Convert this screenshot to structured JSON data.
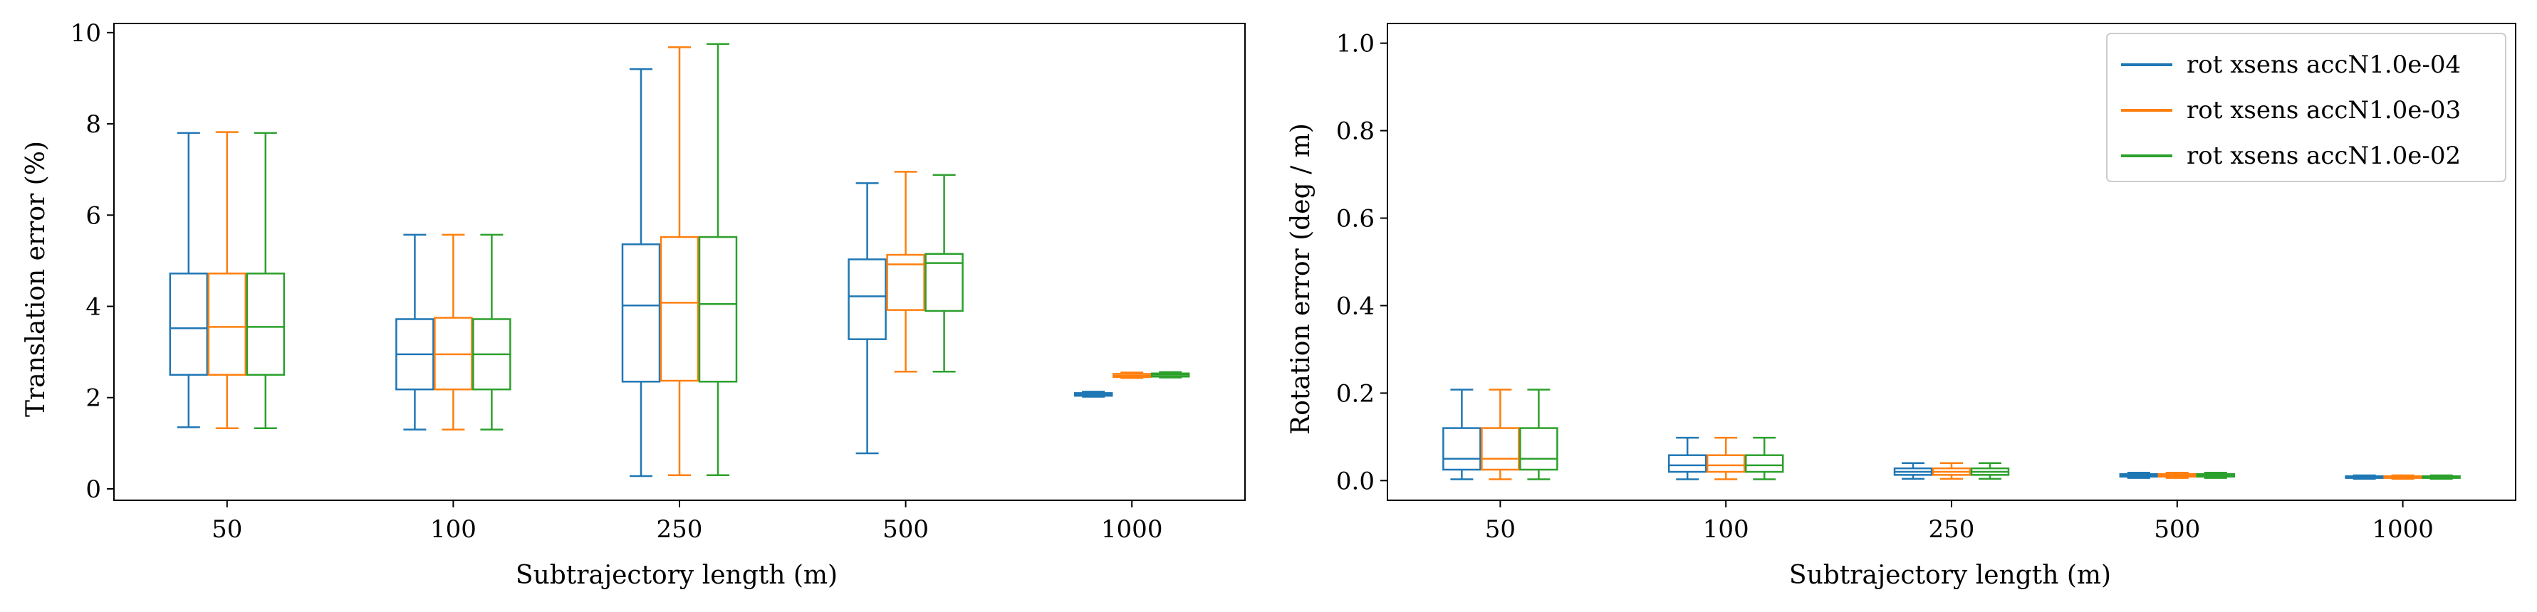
{
  "colors": {
    "series_a": "#1f77b4",
    "series_b": "#ff7f0e",
    "series_c": "#2ca02c",
    "axis": "#000000"
  },
  "chart_data": [
    {
      "type": "box",
      "title": "",
      "xlabel": "Subtrajectory length (m)",
      "ylabel": "Translation error (%)",
      "ylim": [
        -0.25,
        10.2
      ],
      "yticks": [
        0,
        2,
        4,
        6,
        8,
        10
      ],
      "categories": [
        "50",
        "100",
        "250",
        "500",
        "1000"
      ],
      "grid": false,
      "series": [
        {
          "name": "rot xsens accN1.0e-04",
          "color": "#1f77b4",
          "boxes": [
            {
              "whislo": 1.35,
              "q1": 2.5,
              "med": 3.52,
              "q3": 4.72,
              "whishi": 7.8
            },
            {
              "whislo": 1.3,
              "q1": 2.18,
              "med": 2.95,
              "q3": 3.72,
              "whishi": 5.57
            },
            {
              "whislo": 0.28,
              "q1": 2.35,
              "med": 4.02,
              "q3": 5.36,
              "whishi": 9.2
            },
            {
              "whislo": 0.78,
              "q1": 3.28,
              "med": 4.22,
              "q3": 5.03,
              "whishi": 6.7
            },
            {
              "whislo": 2.02,
              "q1": 2.04,
              "med": 2.07,
              "q3": 2.1,
              "whishi": 2.13
            }
          ]
        },
        {
          "name": "rot xsens accN1.0e-03",
          "color": "#ff7f0e",
          "boxes": [
            {
              "whislo": 1.33,
              "q1": 2.5,
              "med": 3.55,
              "q3": 4.72,
              "whishi": 7.82
            },
            {
              "whislo": 1.3,
              "q1": 2.18,
              "med": 2.95,
              "q3": 3.75,
              "whishi": 5.57
            },
            {
              "whislo": 0.3,
              "q1": 2.37,
              "med": 4.08,
              "q3": 5.52,
              "whishi": 9.68
            },
            {
              "whislo": 2.57,
              "q1": 3.92,
              "med": 4.92,
              "q3": 5.13,
              "whishi": 6.95
            },
            {
              "whislo": 2.43,
              "q1": 2.45,
              "med": 2.48,
              "q3": 2.52,
              "whishi": 2.55
            }
          ]
        },
        {
          "name": "rot xsens accN1.0e-02",
          "color": "#2ca02c",
          "boxes": [
            {
              "whislo": 1.33,
              "q1": 2.5,
              "med": 3.55,
              "q3": 4.72,
              "whishi": 7.8
            },
            {
              "whislo": 1.3,
              "q1": 2.18,
              "med": 2.95,
              "q3": 3.72,
              "whishi": 5.57
            },
            {
              "whislo": 0.3,
              "q1": 2.35,
              "med": 4.05,
              "q3": 5.52,
              "whishi": 9.75
            },
            {
              "whislo": 2.57,
              "q1": 3.9,
              "med": 4.95,
              "q3": 5.15,
              "whishi": 6.88
            },
            {
              "whislo": 2.44,
              "q1": 2.46,
              "med": 2.5,
              "q3": 2.53,
              "whishi": 2.56
            }
          ]
        }
      ]
    },
    {
      "type": "box",
      "title": "",
      "xlabel": "Subtrajectory length (m)",
      "ylabel": "Rotation error (deg / m)",
      "ylim": [
        -0.045,
        1.045
      ],
      "yticks": [
        0.0,
        0.2,
        0.4,
        0.6,
        0.8,
        1.0
      ],
      "ytick_labels": [
        "0.0",
        "0.2",
        "0.4",
        "0.6",
        "0.8",
        "1.0"
      ],
      "categories": [
        "50",
        "100",
        "250",
        "500",
        "1000"
      ],
      "grid": false,
      "legend_position": "top-right",
      "series": [
        {
          "name": "rot xsens accN1.0e-04",
          "color": "#1f77b4",
          "boxes": [
            {
              "whislo": 0.003,
              "q1": 0.025,
              "med": 0.05,
              "q3": 0.12,
              "whishi": 0.208
            },
            {
              "whislo": 0.003,
              "q1": 0.02,
              "med": 0.035,
              "q3": 0.058,
              "whishi": 0.098
            },
            {
              "whislo": 0.004,
              "q1": 0.013,
              "med": 0.02,
              "q3": 0.028,
              "whishi": 0.04
            },
            {
              "whislo": 0.006,
              "q1": 0.009,
              "med": 0.012,
              "q3": 0.015,
              "whishi": 0.018
            },
            {
              "whislo": 0.004,
              "q1": 0.006,
              "med": 0.008,
              "q3": 0.01,
              "whishi": 0.012
            }
          ]
        },
        {
          "name": "rot xsens accN1.0e-03",
          "color": "#ff7f0e",
          "boxes": [
            {
              "whislo": 0.003,
              "q1": 0.025,
              "med": 0.05,
              "q3": 0.12,
              "whishi": 0.208
            },
            {
              "whislo": 0.003,
              "q1": 0.02,
              "med": 0.035,
              "q3": 0.058,
              "whishi": 0.098
            },
            {
              "whislo": 0.004,
              "q1": 0.013,
              "med": 0.02,
              "q3": 0.028,
              "whishi": 0.04
            },
            {
              "whislo": 0.006,
              "q1": 0.009,
              "med": 0.012,
              "q3": 0.015,
              "whishi": 0.018
            },
            {
              "whislo": 0.004,
              "q1": 0.006,
              "med": 0.008,
              "q3": 0.01,
              "whishi": 0.012
            }
          ]
        },
        {
          "name": "rot xsens accN1.0e-02",
          "color": "#2ca02c",
          "boxes": [
            {
              "whislo": 0.003,
              "q1": 0.025,
              "med": 0.05,
              "q3": 0.12,
              "whishi": 0.208
            },
            {
              "whislo": 0.003,
              "q1": 0.02,
              "med": 0.035,
              "q3": 0.058,
              "whishi": 0.098
            },
            {
              "whislo": 0.004,
              "q1": 0.013,
              "med": 0.02,
              "q3": 0.028,
              "whishi": 0.04
            },
            {
              "whislo": 0.006,
              "q1": 0.009,
              "med": 0.012,
              "q3": 0.015,
              "whishi": 0.018
            },
            {
              "whislo": 0.004,
              "q1": 0.006,
              "med": 0.008,
              "q3": 0.01,
              "whishi": 0.012
            }
          ]
        }
      ]
    }
  ]
}
